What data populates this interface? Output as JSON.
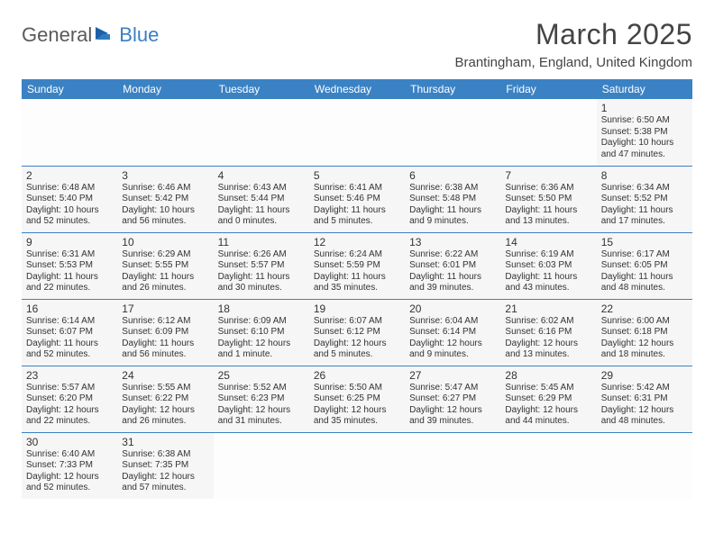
{
  "brand": {
    "part1": "General",
    "part2": "Blue"
  },
  "title": "March 2025",
  "location": "Brantingham, England, United Kingdom",
  "colors": {
    "header_bg": "#3b82c4",
    "header_fg": "#ffffff",
    "cell_bg": "#f6f6f6",
    "border": "#3b82c4",
    "logo_gray": "#5a5a5a",
    "logo_blue": "#3b7fc4"
  },
  "day_headers": [
    "Sunday",
    "Monday",
    "Tuesday",
    "Wednesday",
    "Thursday",
    "Friday",
    "Saturday"
  ],
  "weeks": [
    [
      null,
      null,
      null,
      null,
      null,
      null,
      {
        "n": "1",
        "sunrise": "Sunrise: 6:50 AM",
        "sunset": "Sunset: 5:38 PM",
        "daylight": "Daylight: 10 hours and 47 minutes."
      }
    ],
    [
      {
        "n": "2",
        "sunrise": "Sunrise: 6:48 AM",
        "sunset": "Sunset: 5:40 PM",
        "daylight": "Daylight: 10 hours and 52 minutes."
      },
      {
        "n": "3",
        "sunrise": "Sunrise: 6:46 AM",
        "sunset": "Sunset: 5:42 PM",
        "daylight": "Daylight: 10 hours and 56 minutes."
      },
      {
        "n": "4",
        "sunrise": "Sunrise: 6:43 AM",
        "sunset": "Sunset: 5:44 PM",
        "daylight": "Daylight: 11 hours and 0 minutes."
      },
      {
        "n": "5",
        "sunrise": "Sunrise: 6:41 AM",
        "sunset": "Sunset: 5:46 PM",
        "daylight": "Daylight: 11 hours and 5 minutes."
      },
      {
        "n": "6",
        "sunrise": "Sunrise: 6:38 AM",
        "sunset": "Sunset: 5:48 PM",
        "daylight": "Daylight: 11 hours and 9 minutes."
      },
      {
        "n": "7",
        "sunrise": "Sunrise: 6:36 AM",
        "sunset": "Sunset: 5:50 PM",
        "daylight": "Daylight: 11 hours and 13 minutes."
      },
      {
        "n": "8",
        "sunrise": "Sunrise: 6:34 AM",
        "sunset": "Sunset: 5:52 PM",
        "daylight": "Daylight: 11 hours and 17 minutes."
      }
    ],
    [
      {
        "n": "9",
        "sunrise": "Sunrise: 6:31 AM",
        "sunset": "Sunset: 5:53 PM",
        "daylight": "Daylight: 11 hours and 22 minutes."
      },
      {
        "n": "10",
        "sunrise": "Sunrise: 6:29 AM",
        "sunset": "Sunset: 5:55 PM",
        "daylight": "Daylight: 11 hours and 26 minutes."
      },
      {
        "n": "11",
        "sunrise": "Sunrise: 6:26 AM",
        "sunset": "Sunset: 5:57 PM",
        "daylight": "Daylight: 11 hours and 30 minutes."
      },
      {
        "n": "12",
        "sunrise": "Sunrise: 6:24 AM",
        "sunset": "Sunset: 5:59 PM",
        "daylight": "Daylight: 11 hours and 35 minutes."
      },
      {
        "n": "13",
        "sunrise": "Sunrise: 6:22 AM",
        "sunset": "Sunset: 6:01 PM",
        "daylight": "Daylight: 11 hours and 39 minutes."
      },
      {
        "n": "14",
        "sunrise": "Sunrise: 6:19 AM",
        "sunset": "Sunset: 6:03 PM",
        "daylight": "Daylight: 11 hours and 43 minutes."
      },
      {
        "n": "15",
        "sunrise": "Sunrise: 6:17 AM",
        "sunset": "Sunset: 6:05 PM",
        "daylight": "Daylight: 11 hours and 48 minutes."
      }
    ],
    [
      {
        "n": "16",
        "sunrise": "Sunrise: 6:14 AM",
        "sunset": "Sunset: 6:07 PM",
        "daylight": "Daylight: 11 hours and 52 minutes."
      },
      {
        "n": "17",
        "sunrise": "Sunrise: 6:12 AM",
        "sunset": "Sunset: 6:09 PM",
        "daylight": "Daylight: 11 hours and 56 minutes."
      },
      {
        "n": "18",
        "sunrise": "Sunrise: 6:09 AM",
        "sunset": "Sunset: 6:10 PM",
        "daylight": "Daylight: 12 hours and 1 minute."
      },
      {
        "n": "19",
        "sunrise": "Sunrise: 6:07 AM",
        "sunset": "Sunset: 6:12 PM",
        "daylight": "Daylight: 12 hours and 5 minutes."
      },
      {
        "n": "20",
        "sunrise": "Sunrise: 6:04 AM",
        "sunset": "Sunset: 6:14 PM",
        "daylight": "Daylight: 12 hours and 9 minutes."
      },
      {
        "n": "21",
        "sunrise": "Sunrise: 6:02 AM",
        "sunset": "Sunset: 6:16 PM",
        "daylight": "Daylight: 12 hours and 13 minutes."
      },
      {
        "n": "22",
        "sunrise": "Sunrise: 6:00 AM",
        "sunset": "Sunset: 6:18 PM",
        "daylight": "Daylight: 12 hours and 18 minutes."
      }
    ],
    [
      {
        "n": "23",
        "sunrise": "Sunrise: 5:57 AM",
        "sunset": "Sunset: 6:20 PM",
        "daylight": "Daylight: 12 hours and 22 minutes."
      },
      {
        "n": "24",
        "sunrise": "Sunrise: 5:55 AM",
        "sunset": "Sunset: 6:22 PM",
        "daylight": "Daylight: 12 hours and 26 minutes."
      },
      {
        "n": "25",
        "sunrise": "Sunrise: 5:52 AM",
        "sunset": "Sunset: 6:23 PM",
        "daylight": "Daylight: 12 hours and 31 minutes."
      },
      {
        "n": "26",
        "sunrise": "Sunrise: 5:50 AM",
        "sunset": "Sunset: 6:25 PM",
        "daylight": "Daylight: 12 hours and 35 minutes."
      },
      {
        "n": "27",
        "sunrise": "Sunrise: 5:47 AM",
        "sunset": "Sunset: 6:27 PM",
        "daylight": "Daylight: 12 hours and 39 minutes."
      },
      {
        "n": "28",
        "sunrise": "Sunrise: 5:45 AM",
        "sunset": "Sunset: 6:29 PM",
        "daylight": "Daylight: 12 hours and 44 minutes."
      },
      {
        "n": "29",
        "sunrise": "Sunrise: 5:42 AM",
        "sunset": "Sunset: 6:31 PM",
        "daylight": "Daylight: 12 hours and 48 minutes."
      }
    ],
    [
      {
        "n": "30",
        "sunrise": "Sunrise: 6:40 AM",
        "sunset": "Sunset: 7:33 PM",
        "daylight": "Daylight: 12 hours and 52 minutes."
      },
      {
        "n": "31",
        "sunrise": "Sunrise: 6:38 AM",
        "sunset": "Sunset: 7:35 PM",
        "daylight": "Daylight: 12 hours and 57 minutes."
      },
      null,
      null,
      null,
      null,
      null
    ]
  ]
}
